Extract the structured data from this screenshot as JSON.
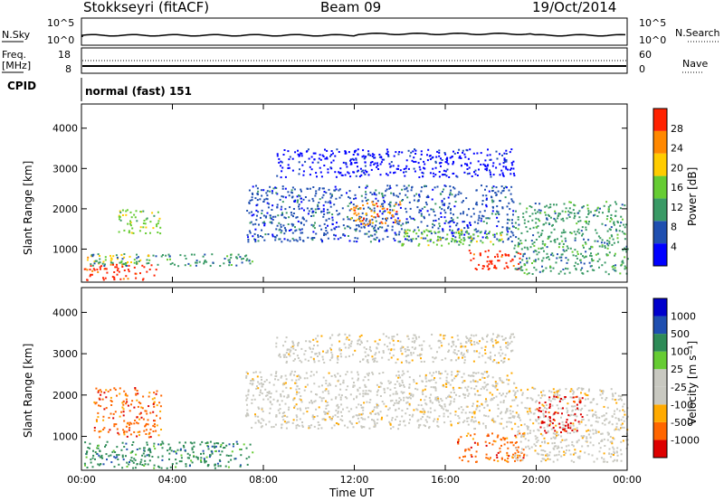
{
  "header": {
    "station": "Stokkseyri (fitACF)",
    "beam": "Beam 09",
    "date": "19/Oct/2014"
  },
  "top_panels": {
    "nsky_label": "N.Sky",
    "nsky_ticks": [
      "10^5",
      "10^0"
    ],
    "nsearch_label": "N.Search",
    "nsearch_ticks": [
      "10^5",
      "10^0"
    ],
    "freq_label_1": "Freq.",
    "freq_label_2": "[MHz]",
    "freq_ticks": [
      "18",
      "8"
    ],
    "nave_label": "Nave",
    "nave_ticks": [
      "60",
      "0"
    ],
    "cpid_label": "CPID",
    "mode_text": "normal (fast) 151"
  },
  "chart_data": [
    {
      "type": "heatmap",
      "title": "",
      "ylabel": "Slant Range [km]",
      "xlabel": "",
      "x_ticks": [
        "00:00",
        "04:00",
        "08:00",
        "12:00",
        "16:00",
        "20:00",
        "00:00"
      ],
      "y_ticks": [
        1000,
        2000,
        3000,
        4000
      ],
      "ylim": [
        180,
        4600
      ],
      "xlim_hours": [
        0,
        24
      ],
      "colorbar": {
        "label": "Power [dB]",
        "ticks": [
          "28",
          "24",
          "20",
          "16",
          "12",
          "8",
          "4"
        ],
        "colors": [
          "#0000ff",
          "#1f4fb0",
          "#3a9a66",
          "#66cc33",
          "#ffcc00",
          "#ff8800",
          "#ff2200"
        ]
      },
      "echo_regions": [
        {
          "t0": 0.1,
          "t1": 3.3,
          "r0": 250,
          "r1": 650,
          "color_index": 6
        },
        {
          "t0": 0.2,
          "t1": 3.0,
          "r0": 650,
          "r1": 900,
          "color_index": 4
        },
        {
          "t0": 0.3,
          "t1": 7.5,
          "r0": 600,
          "r1": 900,
          "color_index": 2
        },
        {
          "t0": 1.5,
          "t1": 3.5,
          "r0": 1400,
          "r1": 2000,
          "color_index": 3
        },
        {
          "t0": 7.2,
          "t1": 19.0,
          "r0": 1200,
          "r1": 2600,
          "color_index": 1
        },
        {
          "t0": 11.8,
          "t1": 14.0,
          "r0": 1600,
          "r1": 2200,
          "color_index": 5
        },
        {
          "t0": 14.0,
          "t1": 18.5,
          "r0": 1100,
          "r1": 1500,
          "color_index": 3
        },
        {
          "t0": 17.0,
          "t1": 19.3,
          "r0": 500,
          "r1": 1000,
          "color_index": 6
        },
        {
          "t0": 19.0,
          "t1": 24.0,
          "r0": 400,
          "r1": 2200,
          "color_index": 2
        },
        {
          "t0": 8.5,
          "t1": 19.0,
          "r0": 2800,
          "r1": 3500,
          "color_index": 0
        }
      ]
    },
    {
      "type": "heatmap",
      "title": "",
      "ylabel": "Slant Range [km]",
      "xlabel": "Time UT",
      "x_ticks": [
        "00:00",
        "04:00",
        "08:00",
        "12:00",
        "16:00",
        "20:00",
        "00:00"
      ],
      "y_ticks": [
        1000,
        2000,
        3000,
        4000
      ],
      "ylim": [
        180,
        4600
      ],
      "xlim_hours": [
        0,
        24
      ],
      "colorbar": {
        "label": "Velocity [m s⁻¹]",
        "ticks": [
          "1000",
          "500",
          "100",
          "25",
          "-25",
          "-100",
          "-500",
          "-1000"
        ],
        "colors": [
          "#dd0000",
          "#ff6600",
          "#ffaa00",
          "#c8c8c0",
          "#c8c8c0",
          "#66cc33",
          "#2e8b57",
          "#1f4fb0",
          "#0000cc"
        ]
      },
      "echo_regions": [
        {
          "t0": 0.1,
          "t1": 7.5,
          "r0": 250,
          "r1": 900,
          "color_index": 6
        },
        {
          "t0": 0.5,
          "t1": 3.5,
          "r0": 1000,
          "r1": 2200,
          "color_index": 1
        },
        {
          "t0": 7.2,
          "t1": 19.0,
          "r0": 1200,
          "r1": 2600,
          "color_index": 3
        },
        {
          "t0": 8.5,
          "t1": 19.0,
          "r0": 2800,
          "r1": 3500,
          "color_index": 3
        },
        {
          "t0": 16.5,
          "t1": 19.5,
          "r0": 400,
          "r1": 1100,
          "color_index": 1
        },
        {
          "t0": 19.0,
          "t1": 24.0,
          "r0": 400,
          "r1": 2200,
          "color_index": 3
        },
        {
          "t0": 20.0,
          "t1": 22.0,
          "r0": 1100,
          "r1": 2000,
          "color_index": 0
        }
      ]
    }
  ]
}
